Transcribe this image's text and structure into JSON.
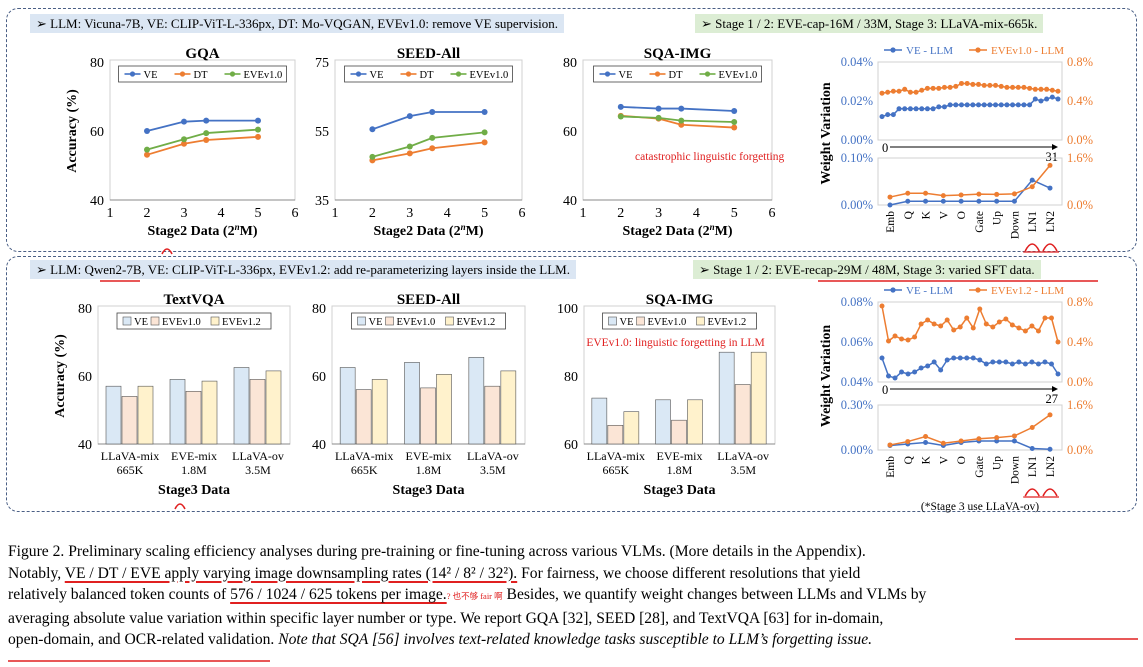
{
  "top_row": {
    "header_left": "➢ LLM: Vicuna-7B,   VE: CLIP-ViT-L-336px,   DT: Mo-VQGAN,   EVEv1.0: remove VE supervision.",
    "header_right": "➢ Stage 1 / 2: EVE-cap-16M / 33M,   Stage 3: LLaVA-mix-665k."
  },
  "bottom_row": {
    "header_left": "➢ LLM: Qwen2-7B,   VE: CLIP-ViT-L-336px,   EVEv1.2: add re-parameterizing layers inside the LLM.",
    "header_right": "➢ Stage 1 / 2: EVE-recap-29M / 48M,   Stage 3: varied SFT data."
  },
  "colors": {
    "VE": "#4472c4",
    "DT": "#ed7d31",
    "EVEv1.0": "#70ad47",
    "bar_VE": "#dae8f5",
    "bar_EVEv1.0": "#fbe5d6",
    "bar_EVEv1.2": "#fff2cc",
    "annotation": "#e02020"
  },
  "chart_data": [
    {
      "id": "gqa",
      "type": "line",
      "title": "GQA",
      "xlabel": "Stage2 Data (2ⁿM)",
      "ylabel": "Accuracy (%)",
      "xlim": [
        1,
        6
      ],
      "ylim": [
        40,
        80
      ],
      "xticks": [
        1,
        2,
        3,
        4,
        5,
        6
      ],
      "yticks": [
        40,
        60,
        80
      ],
      "legend": "top",
      "series": [
        {
          "name": "VE",
          "x": [
            2,
            3,
            3.6,
            5
          ],
          "values": [
            60.0,
            62.7,
            63.0,
            63.0
          ]
        },
        {
          "name": "DT",
          "x": [
            2,
            3,
            3.6,
            5
          ],
          "values": [
            53.1,
            56.3,
            57.4,
            58.3
          ]
        },
        {
          "name": "EVEv1.0",
          "x": [
            2,
            3,
            3.6,
            5
          ],
          "values": [
            54.6,
            57.6,
            59.4,
            60.4
          ]
        }
      ]
    },
    {
      "id": "seed_top",
      "type": "line",
      "title": "SEED-All",
      "xlabel": "Stage2 Data (2ⁿM)",
      "ylabel": "",
      "xlim": [
        1,
        6
      ],
      "ylim": [
        35,
        75
      ],
      "xticks": [
        1,
        2,
        3,
        4,
        5,
        6
      ],
      "yticks": [
        35,
        55,
        75
      ],
      "legend": "top",
      "series": [
        {
          "name": "VE",
          "x": [
            2,
            3,
            3.6,
            5
          ],
          "values": [
            55.5,
            59.3,
            60.5,
            60.5
          ]
        },
        {
          "name": "DT",
          "x": [
            2,
            3,
            3.6,
            5
          ],
          "values": [
            46.5,
            48.5,
            50.0,
            51.7
          ]
        },
        {
          "name": "EVEv1.0",
          "x": [
            2,
            3,
            3.6,
            5
          ],
          "values": [
            47.5,
            50.5,
            53.0,
            54.6
          ]
        }
      ]
    },
    {
      "id": "sqa_top",
      "type": "line",
      "title": "SQA-IMG",
      "xlabel": "Stage2 Data (2ⁿM)",
      "ylabel": "",
      "xlim": [
        1,
        6
      ],
      "ylim": [
        40,
        80
      ],
      "xticks": [
        1,
        2,
        3,
        4,
        5,
        6
      ],
      "yticks": [
        40,
        60,
        80
      ],
      "legend": "top",
      "annotation": "catastrophic linguistic forgetting",
      "series": [
        {
          "name": "VE",
          "x": [
            2,
            3,
            3.6,
            5
          ],
          "values": [
            67.0,
            66.5,
            66.5,
            65.8
          ]
        },
        {
          "name": "DT",
          "x": [
            2,
            3,
            3.6,
            5
          ],
          "values": [
            64.4,
            63.6,
            61.8,
            61.0
          ]
        },
        {
          "name": "EVEv1.0",
          "x": [
            2,
            3,
            3.6,
            5
          ],
          "values": [
            64.2,
            63.8,
            63.0,
            62.6
          ]
        }
      ]
    },
    {
      "id": "wv_top_layers",
      "type": "line",
      "ylabel": "Weight Variation",
      "legend": "top",
      "xticks": [
        "0",
        "31"
      ],
      "left_yticks": [
        "0.00%",
        "0.02%",
        "0.04%"
      ],
      "right_yticks": [
        "0.0%",
        "0.4%",
        "0.8%"
      ],
      "left_ylim": [
        0,
        0.04
      ],
      "right_ylim": [
        0,
        0.8
      ],
      "series": [
        {
          "name": "VE - LLM",
          "axis": "left",
          "values": [
            0.012,
            0.013,
            0.013,
            0.016,
            0.016,
            0.016,
            0.016,
            0.016,
            0.016,
            0.016,
            0.017,
            0.017,
            0.018,
            0.018,
            0.018,
            0.018,
            0.018,
            0.018,
            0.018,
            0.018,
            0.018,
            0.018,
            0.018,
            0.018,
            0.018,
            0.018,
            0.018,
            0.021,
            0.02,
            0.021,
            0.022,
            0.021
          ]
        },
        {
          "name": "EVEv1.0 - LLM",
          "axis": "right",
          "values": [
            0.48,
            0.49,
            0.5,
            0.5,
            0.52,
            0.49,
            0.49,
            0.51,
            0.53,
            0.53,
            0.53,
            0.54,
            0.54,
            0.55,
            0.58,
            0.58,
            0.57,
            0.57,
            0.56,
            0.56,
            0.56,
            0.55,
            0.54,
            0.54,
            0.54,
            0.54,
            0.53,
            0.52,
            0.52,
            0.52,
            0.51,
            0.5
          ]
        }
      ]
    },
    {
      "id": "wv_top_types",
      "type": "line",
      "categories": [
        "Emb",
        "Q",
        "K",
        "V",
        "O",
        "Gate",
        "Up",
        "Down",
        "LN1",
        "LN2"
      ],
      "left_yticks": [
        "0.00%",
        "0.10%"
      ],
      "right_yticks": [
        "0.0%",
        "1.6%"
      ],
      "left_ylim": [
        0,
        0.1
      ],
      "right_ylim": [
        0,
        1.6
      ],
      "series": [
        {
          "name": "VE - LLM",
          "axis": "left",
          "values": [
            0.0,
            0.008,
            0.008,
            0.008,
            0.008,
            0.008,
            0.008,
            0.008,
            0.053,
            0.036
          ]
        },
        {
          "name": "EVEv1.0 - LLM",
          "axis": "right",
          "values": [
            0.27,
            0.4,
            0.4,
            0.32,
            0.34,
            0.37,
            0.36,
            0.38,
            0.62,
            1.35
          ]
        }
      ]
    },
    {
      "id": "textvqa",
      "type": "bar",
      "title": "TextVQA",
      "categories": [
        [
          "LLaVA-mix",
          "665K"
        ],
        [
          "EVE-mix",
          "1.8M"
        ],
        [
          "LLaVA-ov",
          "3.5M"
        ]
      ],
      "xlabel": "Stage3 Data",
      "ylabel": "Accuracy (%)",
      "ylim": [
        40,
        80
      ],
      "yticks": [
        40,
        60,
        80
      ],
      "legend": "top",
      "series": [
        {
          "name": "VE",
          "values": [
            57.0,
            59.0,
            62.5
          ]
        },
        {
          "name": "EVEv1.0",
          "values": [
            54.0,
            55.5,
            59.0
          ]
        },
        {
          "name": "EVEv1.2",
          "values": [
            57.0,
            58.5,
            61.5
          ]
        }
      ]
    },
    {
      "id": "seed_bot",
      "type": "bar",
      "title": "SEED-All",
      "categories": [
        [
          "LLaVA-mix",
          "665K"
        ],
        [
          "EVE-mix",
          "1.8M"
        ],
        [
          "LLaVA-ov",
          "3.5M"
        ]
      ],
      "xlabel": "Stage3 Data",
      "ylabel": "",
      "ylim": [
        40,
        80
      ],
      "yticks": [
        40,
        60,
        80
      ],
      "legend": "top",
      "series": [
        {
          "name": "VE",
          "values": [
            62.5,
            64.0,
            65.5
          ]
        },
        {
          "name": "EVEv1.0",
          "values": [
            56.0,
            56.5,
            57.0
          ]
        },
        {
          "name": "EVEv1.2",
          "values": [
            59.0,
            60.5,
            61.5
          ]
        }
      ]
    },
    {
      "id": "sqa_bot",
      "type": "bar",
      "title": "SQA-IMG",
      "categories": [
        [
          "LLaVA-mix",
          "665K"
        ],
        [
          "EVE-mix",
          "1.8M"
        ],
        [
          "LLaVA-ov",
          "3.5M"
        ]
      ],
      "xlabel": "Stage3 Data",
      "ylabel": "",
      "ylim": [
        60,
        100
      ],
      "yticks": [
        60,
        80,
        100
      ],
      "legend": "top",
      "annotation": "EVEv1.0: linguistic forgetting in LLM",
      "series": [
        {
          "name": "VE",
          "values": [
            73.5,
            73.0,
            87.0
          ]
        },
        {
          "name": "EVEv1.0",
          "values": [
            65.5,
            67.0,
            77.5
          ]
        },
        {
          "name": "EVEv1.2",
          "values": [
            69.5,
            73.0,
            87.0
          ]
        }
      ]
    },
    {
      "id": "wv_bot_layers",
      "type": "line",
      "ylabel": "Weight Variation",
      "legend": "top",
      "xticks": [
        "0",
        "27"
      ],
      "left_yticks": [
        "0.04%",
        "0.06%",
        "0.08%"
      ],
      "right_yticks": [
        "0.0%",
        "0.4%",
        "0.8%"
      ],
      "left_ylim": [
        0.04,
        0.08
      ],
      "right_ylim": [
        0,
        0.8
      ],
      "series": [
        {
          "name": "VE - LLM",
          "axis": "left",
          "values": [
            0.052,
            0.043,
            0.042,
            0.045,
            0.044,
            0.045,
            0.047,
            0.048,
            0.05,
            0.046,
            0.051,
            0.052,
            0.052,
            0.052,
            0.052,
            0.051,
            0.049,
            0.05,
            0.05,
            0.05,
            0.049,
            0.05,
            0.049,
            0.05,
            0.049,
            0.05,
            0.049,
            0.044
          ]
        },
        {
          "name": "EVEv1.2 - LLM",
          "axis": "right",
          "values": [
            0.76,
            0.41,
            0.46,
            0.43,
            0.42,
            0.45,
            0.58,
            0.62,
            0.58,
            0.56,
            0.62,
            0.52,
            0.55,
            0.64,
            0.54,
            0.73,
            0.58,
            0.55,
            0.6,
            0.63,
            0.57,
            0.54,
            0.51,
            0.56,
            0.51,
            0.64,
            0.64,
            0.4
          ]
        }
      ]
    },
    {
      "id": "wv_bot_types",
      "type": "line",
      "categories": [
        "Emb",
        "Q",
        "K",
        "V",
        "O",
        "Gate",
        "Up",
        "Down",
        "LN1",
        "LN2"
      ],
      "left_yticks": [
        "0.00%",
        "0.30%"
      ],
      "right_yticks": [
        "0.0%",
        "1.6%"
      ],
      "left_ylim": [
        0,
        0.3
      ],
      "right_ylim": [
        0,
        1.6
      ],
      "note": "(*Stage 3 use LLaVA-ov)",
      "series": [
        {
          "name": "VE - LLM",
          "axis": "left",
          "values": [
            0.03,
            0.04,
            0.05,
            0.03,
            0.05,
            0.06,
            0.06,
            0.06,
            0.01,
            0.005
          ]
        },
        {
          "name": "EVEv1.2 - LLM",
          "axis": "right",
          "values": [
            0.18,
            0.3,
            0.48,
            0.24,
            0.32,
            0.4,
            0.44,
            0.5,
            0.8,
            1.25
          ]
        }
      ]
    }
  ],
  "caption": {
    "line1": "Figure 2. Preliminary scaling efficiency analyses during pre-training or fine-tuning across various VLMs. (More details in the Appendix).",
    "line2_a": "Notably, ",
    "line2_ul": "VE / DT / EVE apply varying image downsampling rates (14² / 8² / 32²).",
    "line2_b": " For fairness, we choose different resolutions that yield",
    "line3_a": "relatively balanced token counts of ",
    "line3_ul": " 576 / 1024 / 625 tokens per image.",
    "line3_note": "? 也不够 fair 啊",
    "line3_b": " Besides, we quantify weight changes between LLMs and VLMs by",
    "line4": "averaging absolute value variation within specific layer number or type. We report GQA [32], SEED [28], and TextVQA [63] for in-domain,",
    "line5_a": "open-domain, and OCR-related validation. ",
    "line5_i": "Note that SQA [56] involves text-related knowledge tasks susceptible to LLM’s forgetting issue."
  }
}
